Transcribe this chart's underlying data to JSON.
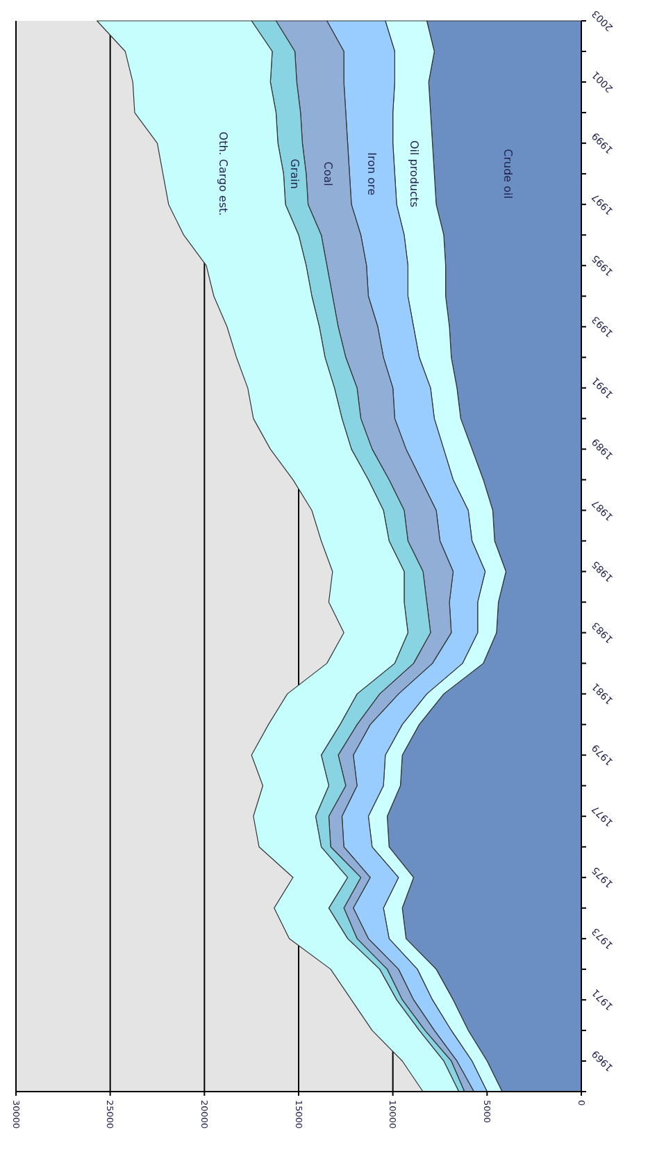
{
  "chart_data": {
    "type": "area",
    "stacked": true,
    "orientation": "horizontal",
    "grid": "x",
    "categories": [
      "2003",
      null,
      "2001",
      null,
      "1999",
      null,
      "1997",
      null,
      "1995",
      null,
      "1993",
      null,
      "1991",
      null,
      "1989",
      null,
      "1987",
      null,
      "1985",
      null,
      "1983",
      null,
      "1981",
      null,
      "1979",
      null,
      "1977",
      null,
      "1975",
      null,
      "1973",
      null,
      "1971",
      null,
      "1969",
      null
    ],
    "xlim": [
      30000,
      0
    ],
    "xticks": [
      30000,
      25000,
      20000,
      15000,
      10000,
      5000,
      0
    ],
    "series": [
      {
        "name": "Crude oil",
        "color": "#6b8fc3",
        "values": [
          8200,
          7800,
          8100,
          8000,
          7900,
          7800,
          7700,
          7300,
          7200,
          7200,
          7000,
          6900,
          6600,
          6400,
          5800,
          5200,
          4700,
          4600,
          4000,
          4400,
          4500,
          5200,
          7300,
          8600,
          9500,
          9600,
          10300,
          10200,
          8900,
          9500,
          9300,
          7700,
          6800,
          6000,
          5000,
          4200
        ]
      },
      {
        "name": "Oil products",
        "color": "#ccffff",
        "values": [
          2200,
          2100,
          1800,
          2000,
          2100,
          2100,
          2100,
          2100,
          2000,
          2000,
          1900,
          1700,
          1400,
          1400,
          1500,
          1600,
          1300,
          1200,
          1100,
          1100,
          1000,
          1100,
          900,
          900,
          900,
          900,
          1000,
          900,
          800,
          1000,
          900,
          1000,
          1100,
          900,
          800,
          800
        ]
      },
      {
        "name": "Iron ore",
        "color": "#99ccff",
        "values": [
          3100,
          2700,
          2700,
          2500,
          2400,
          2400,
          2400,
          2300,
          2200,
          2100,
          1900,
          1900,
          2000,
          2100,
          2000,
          1700,
          1700,
          1700,
          1700,
          1500,
          1400,
          1600,
          1500,
          1700,
          1700,
          1400,
          1400,
          1500,
          1500,
          1600,
          1100,
          1000,
          1000,
          900,
          800,
          700
        ]
      },
      {
        "name": "Coal",
        "color": "#91afd6",
        "values": [
          2700,
          2600,
          2500,
          2400,
          2400,
          2300,
          2300,
          2100,
          2100,
          1900,
          2100,
          2000,
          1900,
          1800,
          1800,
          1700,
          1700,
          1700,
          1600,
          1200,
          1100,
          1000,
          1000,
          700,
          800,
          600,
          700,
          700,
          500,
          500,
          600,
          600,
          600,
          500,
          300,
          500
        ]
      },
      {
        "name": "Grain",
        "color": "#88d4e3",
        "values": [
          1300,
          1200,
          1400,
          1300,
          1300,
          1200,
          1200,
          1200,
          1100,
          1100,
          1000,
          1100,
          1200,
          1000,
          1100,
          1100,
          1100,
          1000,
          1000,
          1200,
          1200,
          1000,
          1200,
          900,
          900,
          900,
          700,
          500,
          700,
          800,
          500,
          400,
          300,
          300,
          400,
          300
        ]
      },
      {
        "name": "Oth. Cargo est.",
        "color": "#c6fdfd",
        "values": [
          8200,
          7800,
          7300,
          7500,
          6400,
          6400,
          6200,
          6100,
          5300,
          5200,
          4900,
          4700,
          4600,
          4700,
          4300,
          4000,
          3800,
          3600,
          3800,
          4000,
          3400,
          3600,
          3700,
          3800,
          3700,
          3500,
          3300,
          3300,
          2900,
          2900,
          3100,
          2600,
          2400,
          2500,
          2200,
          1900
        ]
      }
    ]
  }
}
